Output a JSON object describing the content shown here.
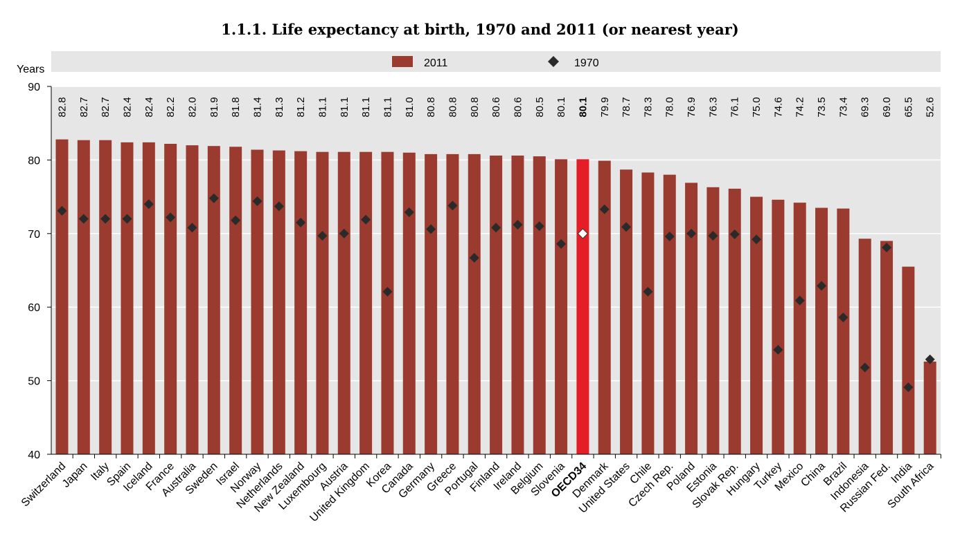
{
  "chart_data": {
    "type": "bar",
    "title": "1.1.1.  Life expectancy at birth, 1970 and 2011 (or nearest year)",
    "ylabel": "Years",
    "ylim": [
      40,
      90
    ],
    "yticks": [
      40,
      50,
      60,
      70,
      80,
      90
    ],
    "grid": true,
    "legend_position": "top",
    "categories": [
      "Switzerland",
      "Japan",
      "Italy",
      "Spain",
      "Iceland",
      "France",
      "Australia",
      "Sweden",
      "Israel",
      "Norway",
      "Netherlands",
      "New Zealand",
      "Luxembourg",
      "Austria",
      "United Kingdom",
      "Korea",
      "Canada",
      "Germany",
      "Greece",
      "Portugal",
      "Finland",
      "Ireland",
      "Belgium",
      "Slovenia",
      "OECD34",
      "Denmark",
      "United States",
      "Chile",
      "Czech Rep.",
      "Poland",
      "Estonia",
      "Slovak Rep.",
      "Hungary",
      "Turkey",
      "Mexico",
      "China",
      "Brazil",
      "Indonesia",
      "Russian Fed.",
      "India",
      "South Africa"
    ],
    "highlight": "OECD34",
    "series": [
      {
        "name": "2011",
        "mark": "bar",
        "color": "#9b3a2e",
        "values": [
          82.8,
          82.7,
          82.7,
          82.4,
          82.4,
          82.2,
          82.0,
          81.9,
          81.8,
          81.4,
          81.3,
          81.2,
          81.1,
          81.1,
          81.1,
          81.1,
          81.0,
          80.8,
          80.8,
          80.8,
          80.6,
          80.6,
          80.5,
          80.1,
          80.1,
          79.9,
          78.7,
          78.3,
          78.0,
          76.9,
          76.3,
          76.1,
          75.0,
          74.6,
          74.2,
          73.5,
          73.4,
          69.3,
          69.0,
          65.5,
          52.6
        ],
        "labels": [
          "82.8",
          "82.7",
          "82.7",
          "82.4",
          "82.4",
          "82.2",
          "82.0",
          "81.9",
          "81.8",
          "81.4",
          "81.3",
          "81.2",
          "81.1",
          "81.1",
          "81.1",
          "81.1",
          "81.0",
          "80.8",
          "80.8",
          "80.8",
          "80.6",
          "80.6",
          "80.5",
          "80.1",
          "80.1",
          "79.9",
          "78.7",
          "78.3",
          "78.0",
          "76.9",
          "76.3",
          "76.1",
          "75.0",
          "74.6",
          "74.2",
          "73.5",
          "73.4",
          "69.3",
          "69.0",
          "65.5",
          "52.6"
        ]
      },
      {
        "name": "1970",
        "mark": "diamond",
        "color": "#2a2a2a",
        "values": [
          73.1,
          72.0,
          72.0,
          72.0,
          74.0,
          72.2,
          70.8,
          74.8,
          71.8,
          74.4,
          73.7,
          71.5,
          69.7,
          70.0,
          71.9,
          62.1,
          72.9,
          70.6,
          73.8,
          66.7,
          70.8,
          71.2,
          71.0,
          68.6,
          70.0,
          73.3,
          70.9,
          62.1,
          69.6,
          70.0,
          69.7,
          69.9,
          69.2,
          54.2,
          60.9,
          62.9,
          58.6,
          51.8,
          68.1,
          49.1,
          52.9
        ]
      }
    ],
    "highlight_colors": {
      "bar": "#e41e26",
      "diamond": "#ffffff"
    },
    "legend": [
      {
        "name": "2011",
        "mark": "bar"
      },
      {
        "name": "1970",
        "mark": "diamond"
      }
    ]
  }
}
